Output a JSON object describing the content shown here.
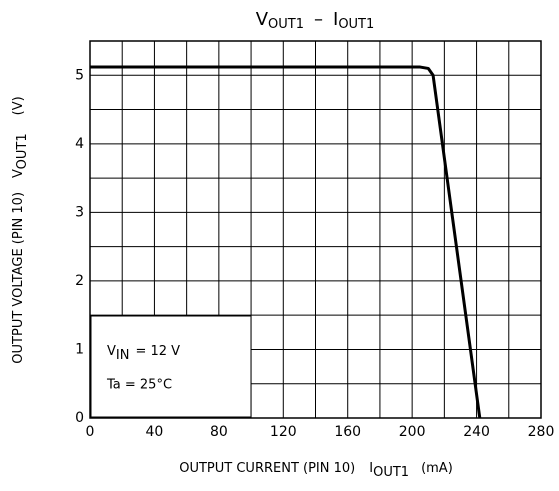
{
  "chart_data": {
    "type": "line",
    "title": [
      "V",
      "OUT1",
      "–",
      "I",
      "OUT1"
    ],
    "x_label": [
      "OUTPUT CURRENT (PIN 10)",
      "I",
      "OUT1",
      "(mA)"
    ],
    "y_label": [
      "OUTPUT VOLTAGE (PIN 10)",
      "V",
      "OUT1",
      "(V)"
    ],
    "annotations": [
      [
        "V",
        "IN",
        "= 12 V"
      ],
      [
        "Ta = 25°C"
      ]
    ],
    "xlim": [
      0,
      280
    ],
    "ylim": [
      0,
      5.5
    ],
    "xticks": [
      0,
      40,
      80,
      120,
      160,
      200,
      240,
      280
    ],
    "yticks": [
      0,
      1,
      2,
      3,
      4,
      5
    ],
    "xgrid": [
      0,
      20,
      40,
      60,
      80,
      100,
      120,
      140,
      160,
      180,
      200,
      220,
      240,
      260,
      280
    ],
    "ygrid": [
      0,
      0.5,
      1,
      1.5,
      2,
      2.5,
      3,
      3.5,
      4,
      4.5,
      5,
      5.5
    ],
    "grid": true,
    "series": [
      {
        "color": "#000000",
        "x": [
          0,
          205,
          210,
          213,
          242
        ],
        "values": [
          5.12,
          5.12,
          5.1,
          5.0,
          0
        ]
      }
    ]
  }
}
